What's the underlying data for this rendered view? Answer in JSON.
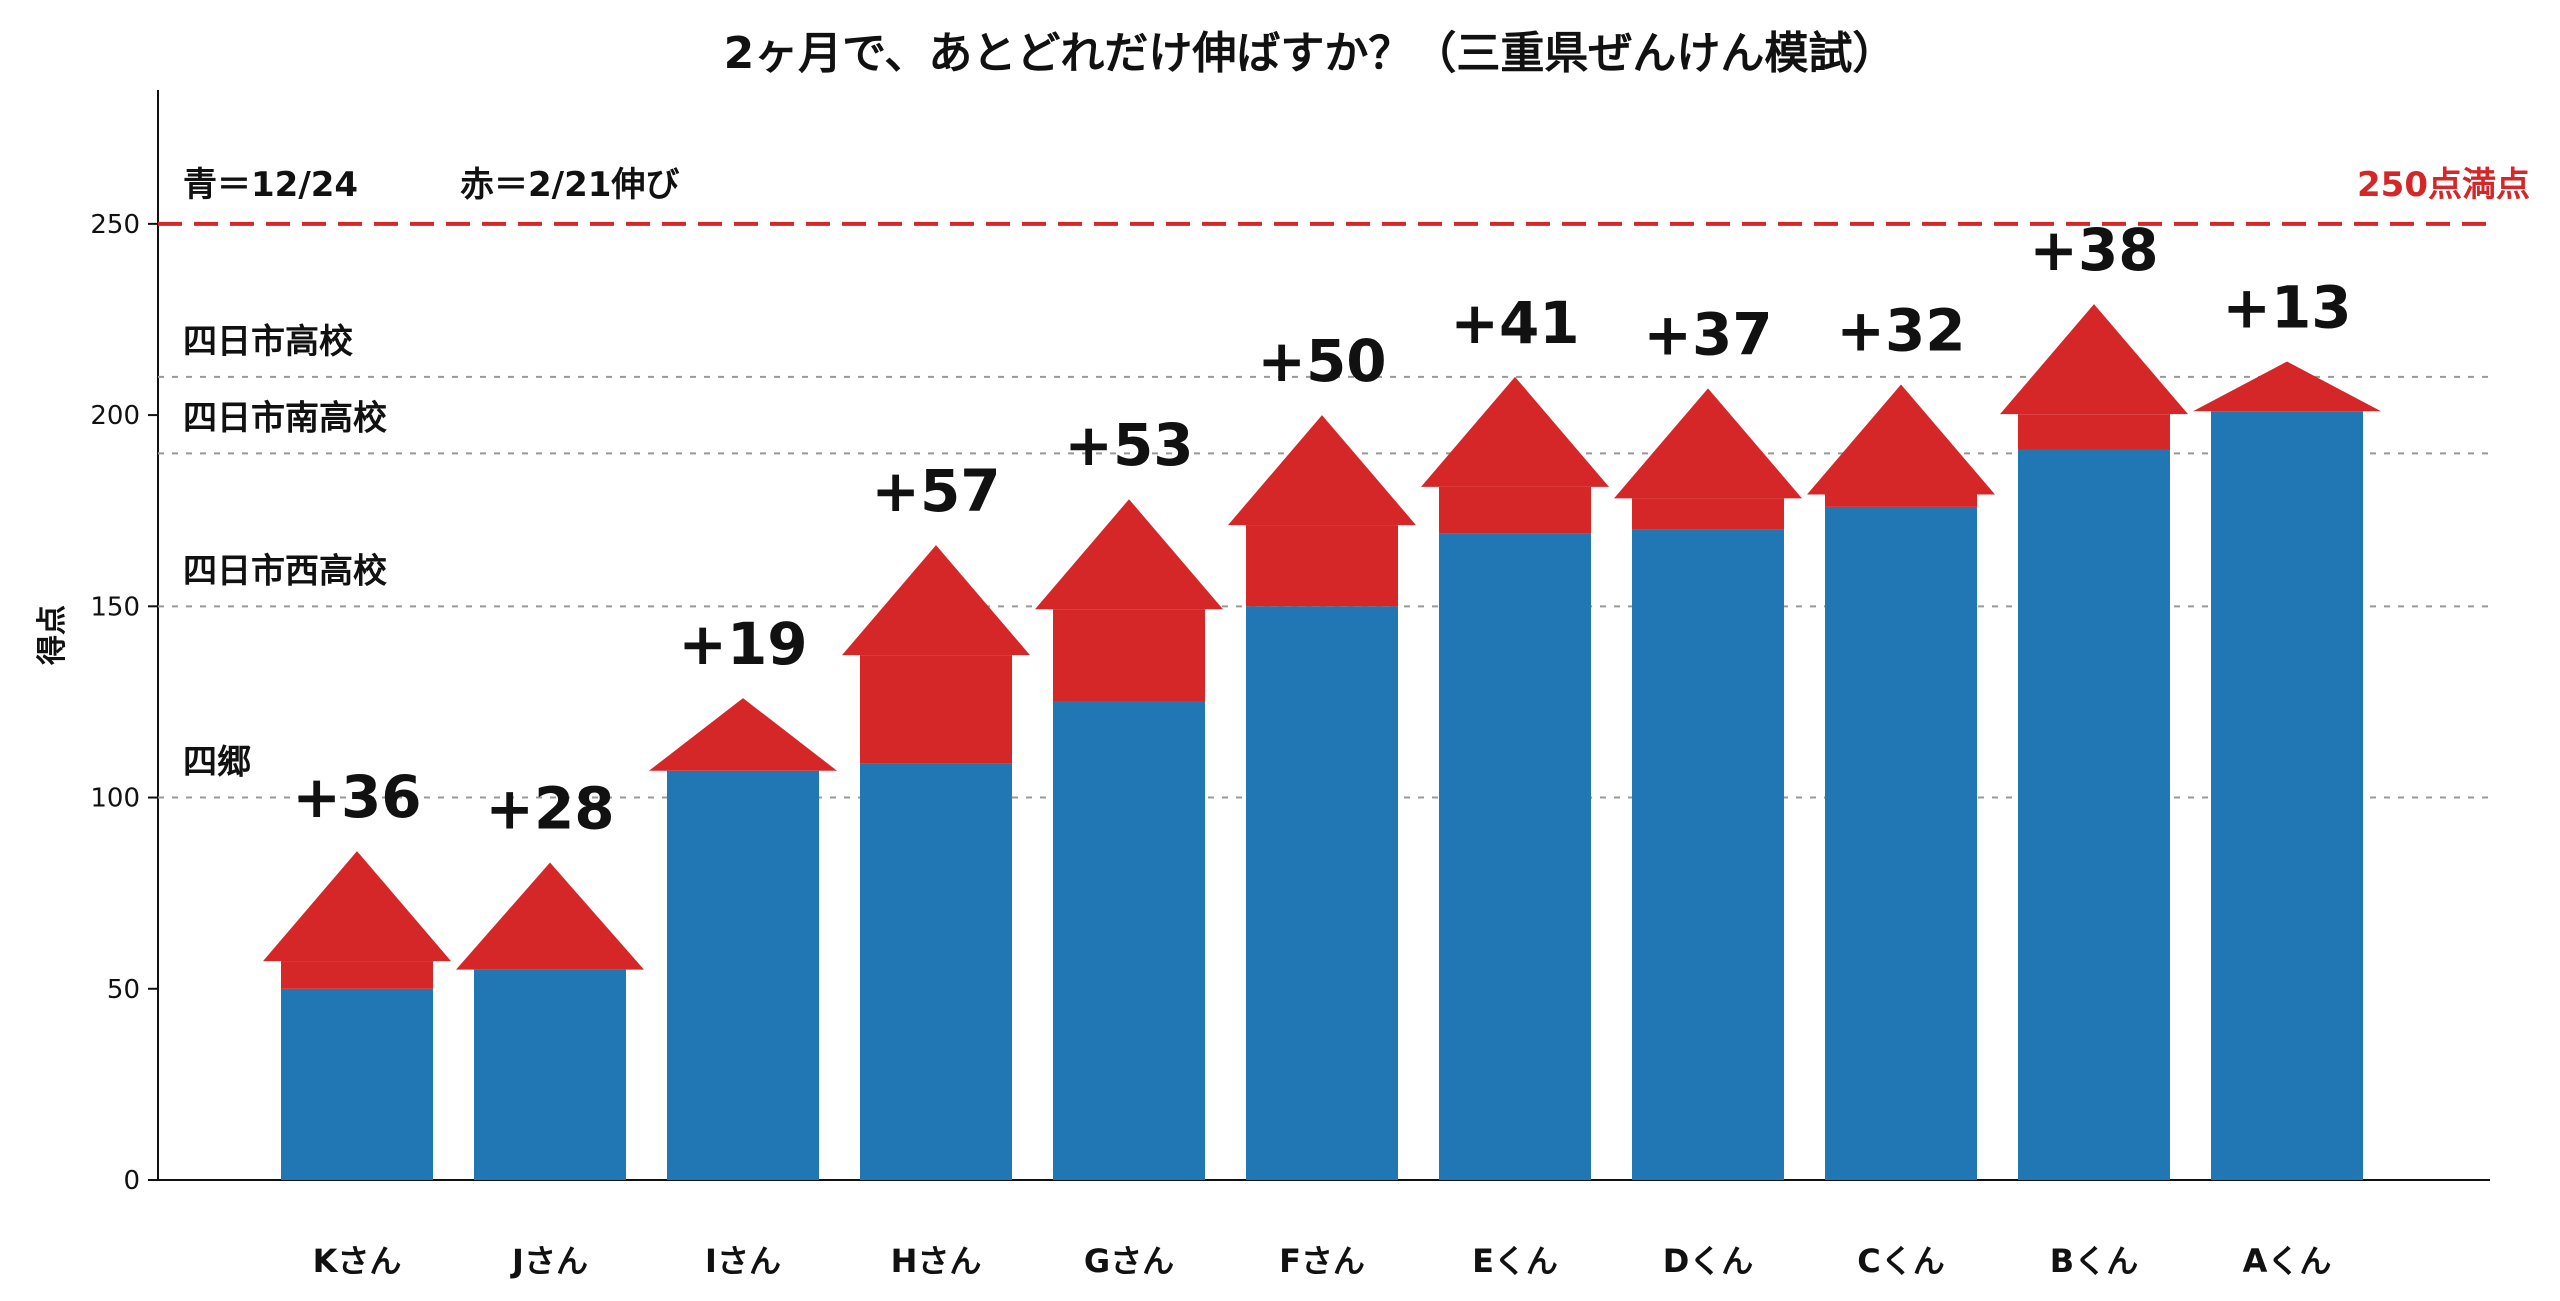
{
  "chart_data": {
    "type": "bar",
    "title": "2ヶ月で、あとどれだけ伸ばすか？（三重県ぜんけん模試）",
    "ylabel": "得点",
    "xlabel": "",
    "ylim": [
      0,
      285
    ],
    "yticks": [
      0,
      50,
      100,
      150,
      200,
      250
    ],
    "categories": [
      "Kさん",
      "Jさん",
      "Iさん",
      "Hさん",
      "Gさん",
      "Fさん",
      "Eくん",
      "Dくん",
      "Cくん",
      "Bくん",
      "Aくん"
    ],
    "series": [
      {
        "name": "青＝12/24",
        "color": "#2077b4",
        "values": [
          50,
          55,
          107,
          109,
          125,
          150,
          169,
          170,
          176,
          191,
          201
        ]
      },
      {
        "name": "赤＝2/21伸び",
        "color": "#d62728",
        "values": [
          36,
          28,
          19,
          57,
          53,
          50,
          41,
          37,
          32,
          38,
          13
        ]
      }
    ],
    "gain_labels": [
      "+36",
      "+28",
      "+19",
      "+57",
      "+53",
      "+50",
      "+41",
      "+37",
      "+32",
      "+38",
      "+13"
    ],
    "legend_note": [
      "青＝12/24",
      "赤＝2/21伸び"
    ],
    "max_score": {
      "value": 250,
      "label": "250点満点",
      "color": "#d62728"
    },
    "reference_lines": [
      {
        "value": 210,
        "label": "四日市高校"
      },
      {
        "value": 190,
        "label": "四日市南高校"
      },
      {
        "value": 150,
        "label": "四日市西高校"
      },
      {
        "value": 100,
        "label": "四郷"
      }
    ],
    "grid": false,
    "legend": "top-left text"
  }
}
